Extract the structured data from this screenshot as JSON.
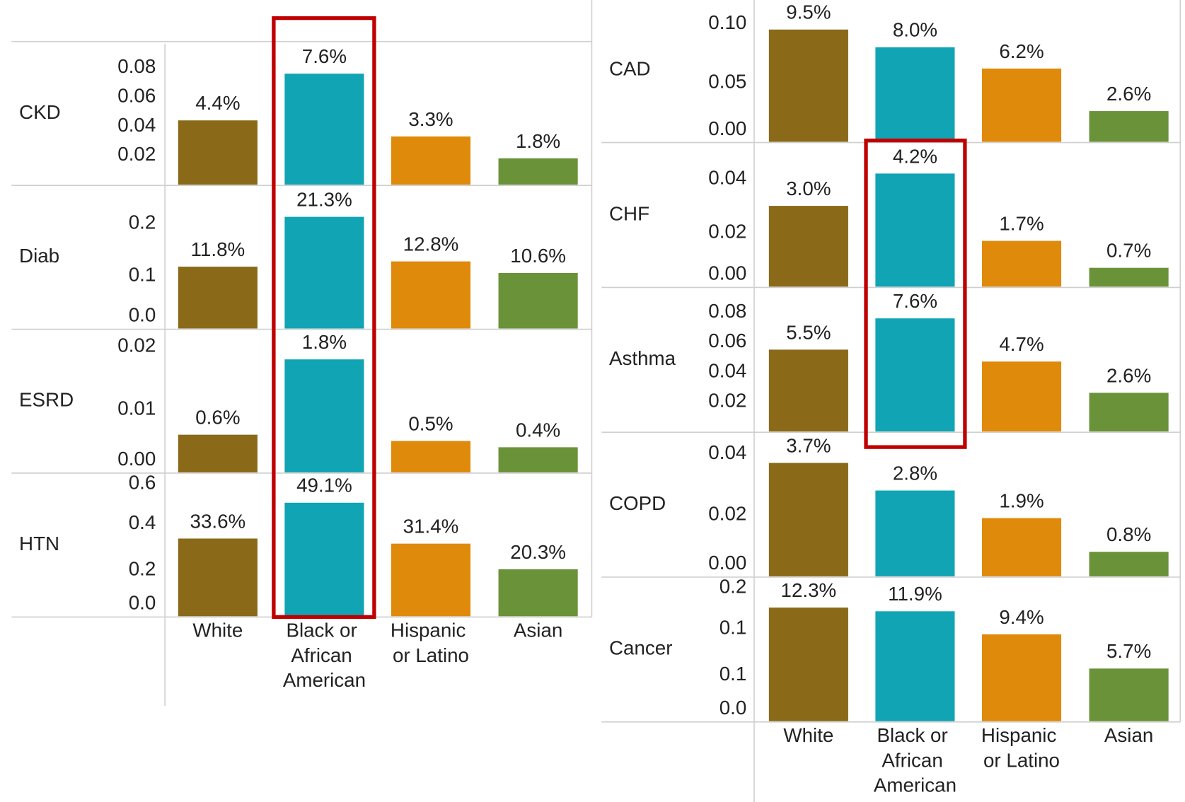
{
  "chart_data": [
    {
      "type": "bar",
      "categories": [
        "White",
        "Black or African American",
        "Hispanic or Latino",
        "Asian"
      ],
      "colors": [
        "#8a6a19",
        "#10a4b4",
        "#df8a0a",
        "#6a9238"
      ],
      "facets": [
        {
          "title": "CKD",
          "values": [
            0.044,
            0.076,
            0.033,
            0.018
          ],
          "value_labels": [
            "4.4%",
            "7.6%",
            "3.3%",
            "1.8%"
          ],
          "ylim": [
            0,
            0.098
          ],
          "yticks": [
            0.02,
            0.04,
            0.06,
            0.08
          ]
        },
        {
          "title": "Diab",
          "values": [
            0.118,
            0.213,
            0.128,
            0.106
          ],
          "value_labels": [
            "11.8%",
            "21.3%",
            "12.8%",
            "10.6%"
          ],
          "ylim": [
            0,
            0.273
          ],
          "yticks": [
            {
              "value": 0,
              "label": "0.0"
            },
            0.1,
            0.2
          ]
        },
        {
          "title": "ESRD",
          "values": [
            0.006,
            0.018,
            0.005,
            0.004
          ],
          "value_labels": [
            "0.6%",
            "1.8%",
            "0.5%",
            "0.4%"
          ],
          "ylim": [
            0,
            0.0228
          ],
          "yticks": [
            {
              "value": 0,
              "label": "0.00"
            },
            0.01,
            0.02
          ]
        },
        {
          "title": "HTN",
          "values": [
            0.336,
            0.491,
            0.314,
            0.203
          ],
          "value_labels": [
            "33.6%",
            "49.1%",
            "31.4%",
            "20.3%"
          ],
          "ylim": [
            0,
            0.619
          ],
          "yticks": [
            {
              "value": 0,
              "label": "0.0"
            },
            0.2,
            0.4,
            0.6
          ]
        }
      ]
    },
    {
      "type": "bar",
      "categories": [
        "White",
        "Black or African American",
        "Hispanic or Latino",
        "Asian"
      ],
      "colors": [
        "#8a6a19",
        "#10a4b4",
        "#df8a0a",
        "#6a9238"
      ],
      "facets": [
        {
          "title": "CAD",
          "values": [
            0.095,
            0.08,
            0.062,
            0.026
          ],
          "value_labels": [
            "9.5%",
            "8.0%",
            "6.2%",
            "2.6%"
          ],
          "ylim": [
            0,
            0.12
          ],
          "yticks": [
            {
              "value": 0,
              "label": "0.00"
            },
            0.05,
            {
              "value": 0.1,
              "label": "0.10"
            }
          ]
        },
        {
          "title": "CHF",
          "values": [
            0.03,
            0.042,
            0.017,
            0.007
          ],
          "value_labels": [
            "3.0%",
            "4.2%",
            "1.7%",
            "0.7%"
          ],
          "ylim": [
            0,
            0.0535
          ],
          "yticks": [
            {
              "value": 0,
              "label": "0.00"
            },
            0.02,
            0.04
          ]
        },
        {
          "title": "Asthma",
          "values": [
            0.055,
            0.076,
            0.047,
            0.026
          ],
          "value_labels": [
            "5.5%",
            "7.6%",
            "4.7%",
            "2.6%"
          ],
          "ylim": [
            0,
            0.0968
          ],
          "yticks": [
            0.02,
            0.04,
            0.06,
            0.08
          ]
        },
        {
          "title": "COPD",
          "values": [
            0.037,
            0.028,
            0.019,
            0.008
          ],
          "value_labels": [
            "3.7%",
            "2.8%",
            "1.9%",
            "0.8%"
          ],
          "ylim": [
            0,
            0.047
          ],
          "yticks": [
            {
              "value": 0,
              "label": "0.00"
            },
            0.02,
            0.04
          ]
        },
        {
          "title": "Cancer",
          "values": [
            0.123,
            0.119,
            0.094,
            0.057
          ],
          "value_labels": [
            "12.3%",
            "11.9%",
            "9.4%",
            "5.7%"
          ],
          "ylim": [
            0,
            0.156
          ],
          "yticks": [
            {
              "value": 0,
              "label": "0.0"
            },
            {
              "value": 0.05,
              "label": "0.1"
            },
            {
              "value": 0.1,
              "label": "0.1"
            },
            {
              "value": 0.15,
              "label": "0.2"
            }
          ]
        }
      ]
    }
  ]
}
